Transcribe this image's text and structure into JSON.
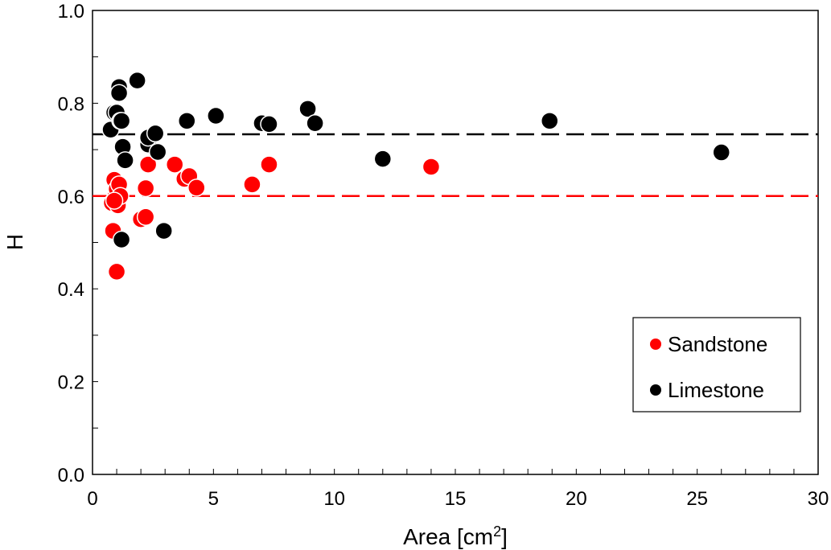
{
  "chart_data": {
    "type": "scatter",
    "xlabel": "Area [cm",
    "xlabel_sup": "2",
    "xlabel_close": "]",
    "ylabel": "H",
    "xlim": [
      0,
      30
    ],
    "ylim": [
      0.0,
      1.0
    ],
    "x_ticks": [
      0,
      5,
      10,
      15,
      20,
      25,
      30
    ],
    "y_ticks": [
      0.0,
      0.2,
      0.4,
      0.6,
      0.8,
      1.0
    ],
    "x_tick_labels": [
      "0",
      "5",
      "10",
      "15",
      "20",
      "25",
      "30"
    ],
    "y_tick_labels": [
      "0.0",
      "0.2",
      "0.4",
      "0.6",
      "0.8",
      "1.0"
    ],
    "grid": false,
    "legend_position": "bottom-right",
    "series": [
      {
        "name": "Sandstone",
        "color": "#ff0000",
        "mean_line": 0.6,
        "points": [
          {
            "x": 0.8,
            "y": 0.585
          },
          {
            "x": 0.85,
            "y": 0.525
          },
          {
            "x": 0.9,
            "y": 0.635
          },
          {
            "x": 0.95,
            "y": 0.6
          },
          {
            "x": 1.0,
            "y": 0.615
          },
          {
            "x": 1.05,
            "y": 0.58
          },
          {
            "x": 1.1,
            "y": 0.625
          },
          {
            "x": 1.15,
            "y": 0.6
          },
          {
            "x": 1.0,
            "y": 0.437
          },
          {
            "x": 0.9,
            "y": 0.59
          },
          {
            "x": 2.0,
            "y": 0.55
          },
          {
            "x": 2.2,
            "y": 0.555
          },
          {
            "x": 2.2,
            "y": 0.617
          },
          {
            "x": 2.3,
            "y": 0.668
          },
          {
            "x": 3.4,
            "y": 0.668
          },
          {
            "x": 3.8,
            "y": 0.637
          },
          {
            "x": 4.0,
            "y": 0.643
          },
          {
            "x": 4.3,
            "y": 0.618
          },
          {
            "x": 6.6,
            "y": 0.625
          },
          {
            "x": 7.3,
            "y": 0.668
          },
          {
            "x": 14.0,
            "y": 0.663
          }
        ]
      },
      {
        "name": "Limestone",
        "color": "#000000",
        "mean_line": 0.733,
        "points": [
          {
            "x": 0.75,
            "y": 0.743
          },
          {
            "x": 0.9,
            "y": 0.78
          },
          {
            "x": 1.0,
            "y": 0.78
          },
          {
            "x": 1.1,
            "y": 0.835
          },
          {
            "x": 1.1,
            "y": 0.822
          },
          {
            "x": 1.15,
            "y": 0.762
          },
          {
            "x": 1.2,
            "y": 0.762
          },
          {
            "x": 1.25,
            "y": 0.706
          },
          {
            "x": 1.35,
            "y": 0.677
          },
          {
            "x": 1.2,
            "y": 0.506
          },
          {
            "x": 1.85,
            "y": 0.849
          },
          {
            "x": 2.3,
            "y": 0.711
          },
          {
            "x": 2.3,
            "y": 0.726
          },
          {
            "x": 2.6,
            "y": 0.735
          },
          {
            "x": 2.7,
            "y": 0.695
          },
          {
            "x": 2.95,
            "y": 0.525
          },
          {
            "x": 3.9,
            "y": 0.762
          },
          {
            "x": 5.1,
            "y": 0.773
          },
          {
            "x": 7.0,
            "y": 0.757
          },
          {
            "x": 7.3,
            "y": 0.755
          },
          {
            "x": 8.9,
            "y": 0.788
          },
          {
            "x": 9.2,
            "y": 0.757
          },
          {
            "x": 12.0,
            "y": 0.68
          },
          {
            "x": 18.9,
            "y": 0.762
          },
          {
            "x": 26.0,
            "y": 0.694
          }
        ]
      }
    ]
  }
}
